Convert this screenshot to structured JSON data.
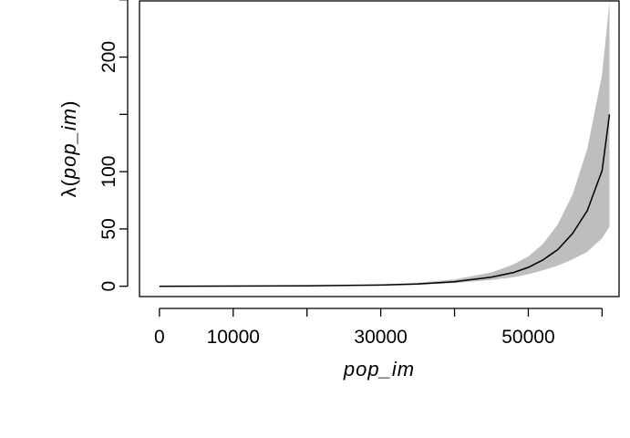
{
  "chart_data": {
    "type": "line",
    "title": "",
    "xlabel": "pop_im",
    "ylabel_prefix": "λ(",
    "ylabel_var": "pop_im",
    "ylabel_suffix": ")",
    "xlim": [
      -2700,
      62300
    ],
    "ylim": [
      -9,
      249
    ],
    "x_ticks": [
      0,
      10000,
      20000,
      30000,
      40000,
      50000,
      60000
    ],
    "x_tick_labels": [
      "0",
      "10000",
      "",
      "30000",
      "",
      "50000",
      ""
    ],
    "y_ticks": [
      0,
      50,
      100,
      150,
      200,
      250
    ],
    "y_tick_labels": [
      "0",
      "50",
      "100",
      "",
      "200",
      ""
    ],
    "grid": false,
    "band_color": "#bebebe",
    "line_color": "#000000",
    "series": [
      {
        "x": [
          0,
          20000,
          30000,
          35000,
          40000,
          45000,
          48000,
          50000,
          52000,
          54000,
          56000,
          58000,
          60000,
          61000
        ],
        "y": [
          0.0,
          0.3,
          1.0,
          2.0,
          4.0,
          8.0,
          12.0,
          16.5,
          23.0,
          32.0,
          46.0,
          66.0,
          101.0,
          150.0
        ],
        "lower": [
          0.0,
          0.2,
          0.7,
          1.4,
          2.8,
          5.5,
          8.0,
          10.5,
          14.0,
          18.0,
          23.5,
          30.0,
          42.0,
          52.0
        ],
        "upper": [
          0.0,
          0.4,
          1.5,
          3.0,
          6.0,
          12.0,
          19.0,
          26.0,
          37.0,
          54.0,
          80.0,
          120.0,
          185.0,
          248.0
        ]
      }
    ]
  }
}
